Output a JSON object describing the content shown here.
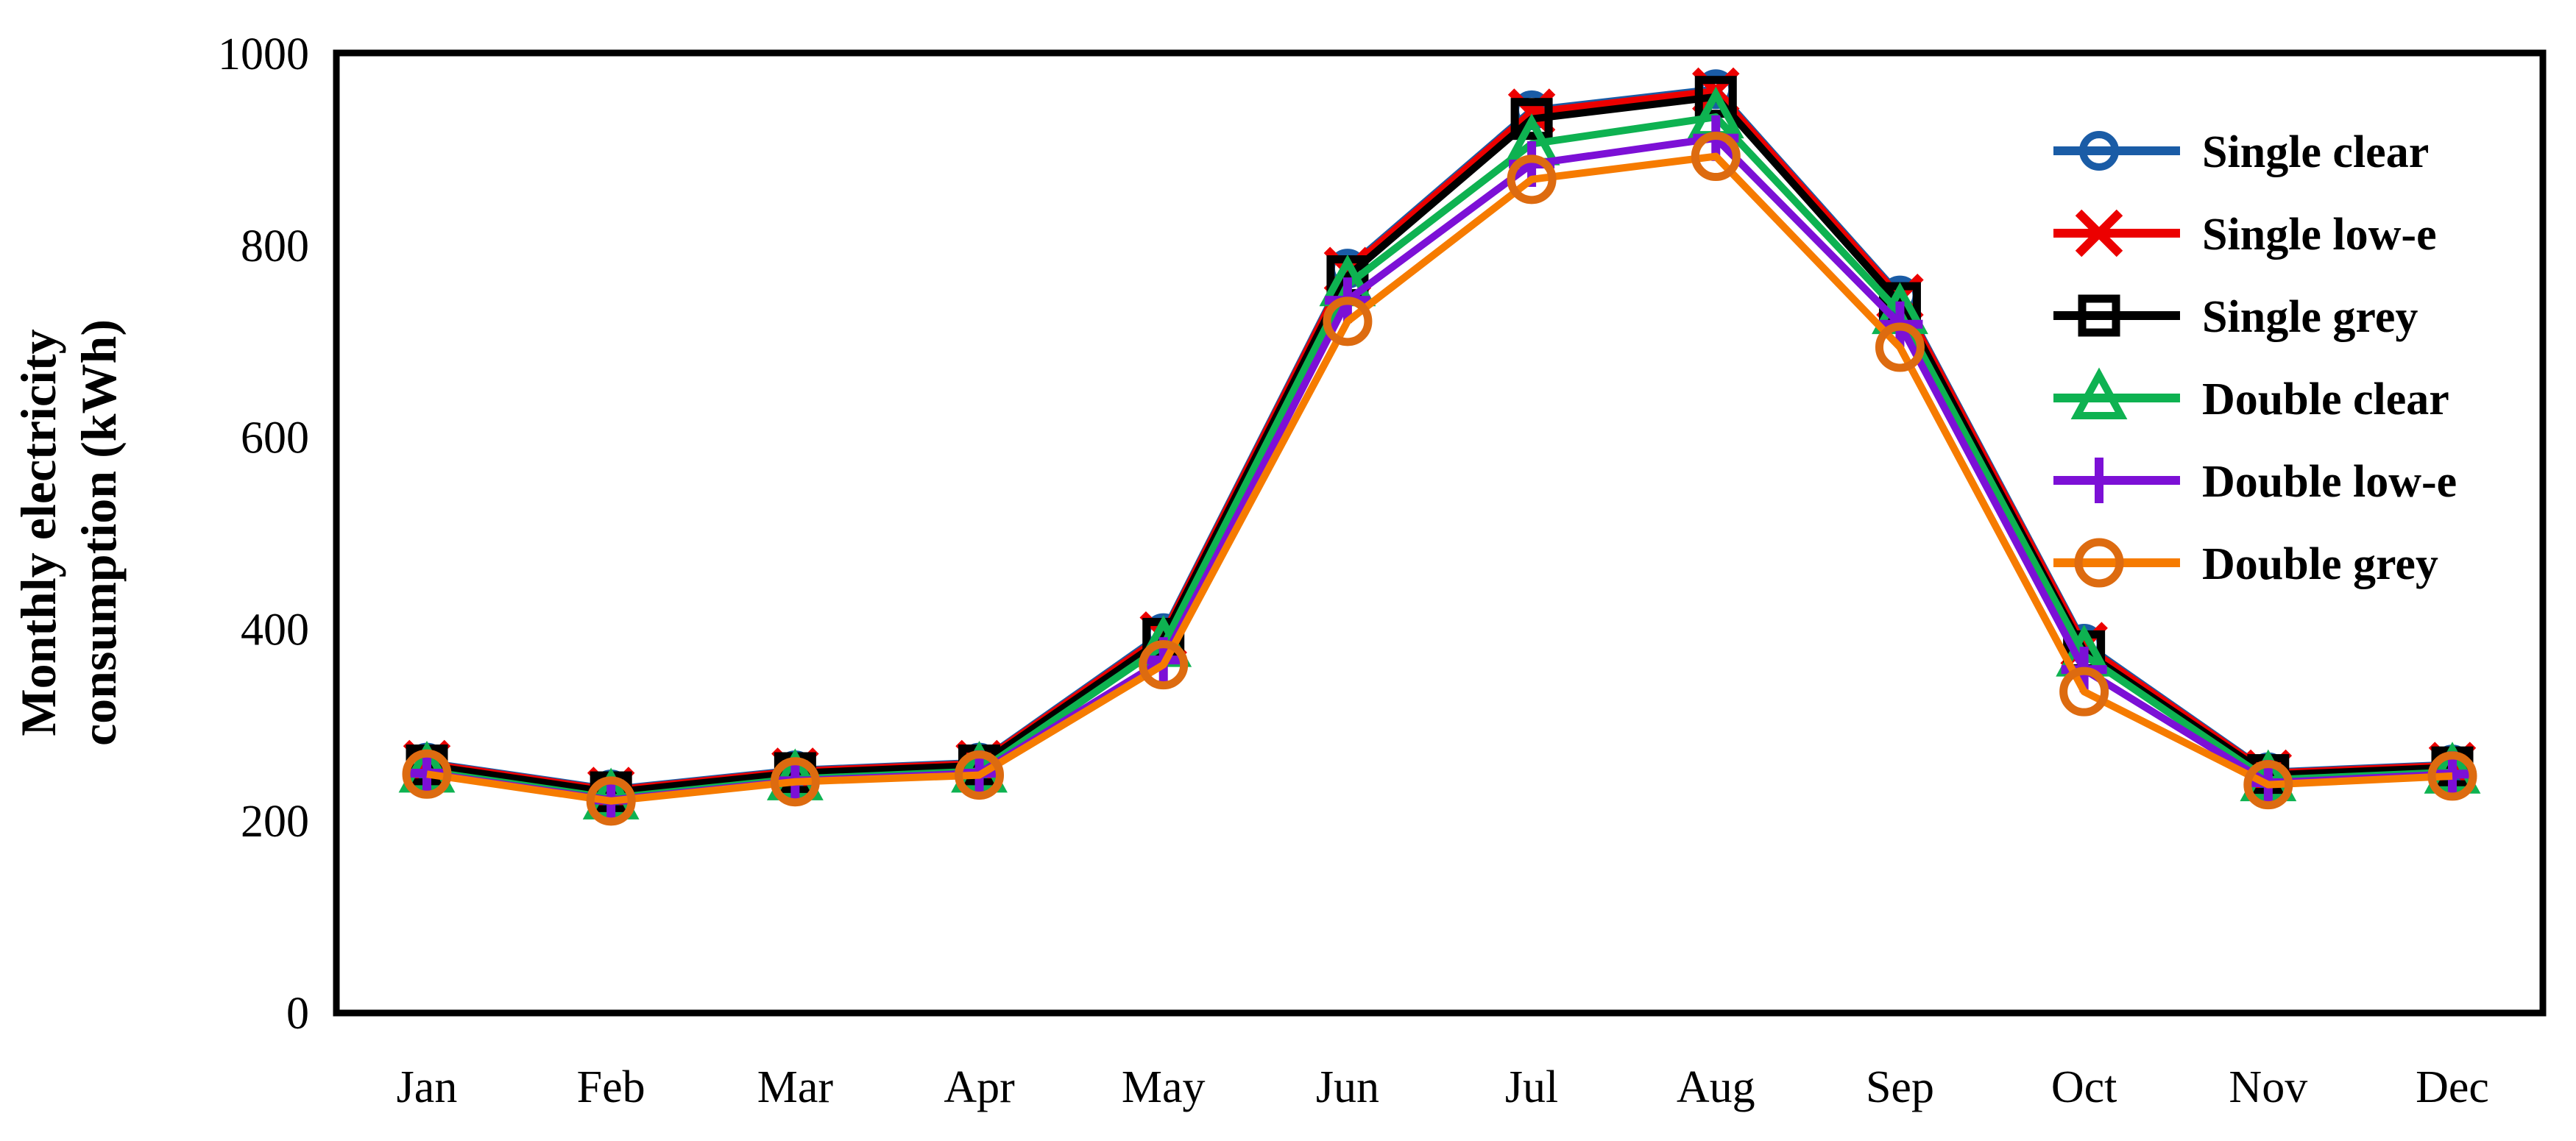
{
  "chart_data": {
    "type": "line",
    "title": "",
    "ylabel_line1": "Monthly electricity",
    "ylabel_line2": "consumption (kWh)",
    "xlabel": "",
    "ylim": [
      0,
      1000
    ],
    "yticks": [
      0,
      200,
      400,
      600,
      800,
      1000
    ],
    "grid": false,
    "legend_position": "inside-right",
    "categories": [
      "Jan",
      "Feb",
      "Mar",
      "Apr",
      "May",
      "Jun",
      "Jul",
      "Aug",
      "Sep",
      "Oct",
      "Nov",
      "Dec"
    ],
    "series": [
      {
        "name": "Single clear",
        "color": "#1A5CA6",
        "marker": "circle",
        "values": [
          261,
          233,
          253,
          261,
          396,
          776,
          941,
          963,
          748,
          385,
          251,
          259
        ]
      },
      {
        "name": "Single low-e",
        "color": "#EC0000",
        "marker": "x",
        "values": [
          260,
          232,
          252,
          260,
          394,
          774,
          939,
          961,
          746,
          383,
          250,
          258
        ]
      },
      {
        "name": "Single grey",
        "color": "#000000",
        "marker": "square",
        "values": [
          258,
          230,
          250,
          258,
          390,
          768,
          932,
          955,
          740,
          377,
          248,
          256
        ]
      },
      {
        "name": "Double clear",
        "color": "#0EB251",
        "marker": "triangle",
        "values": [
          252,
          224,
          244,
          252,
          383,
          759,
          906,
          934,
          730,
          373,
          243,
          251
        ]
      },
      {
        "name": "Double low-e",
        "color": "#7C10D6",
        "marker": "plus",
        "values": [
          250,
          222,
          242,
          250,
          368,
          743,
          885,
          912,
          718,
          358,
          240,
          249
        ]
      },
      {
        "name": "Double grey",
        "color": "#F67B00",
        "marker_color": "#DD6B10",
        "marker": "circle-lg",
        "values": [
          249,
          221,
          241,
          248,
          363,
          721,
          869,
          893,
          694,
          335,
          238,
          247
        ]
      }
    ],
    "axis_color": "#000000",
    "background_color": "#FFFFFF"
  }
}
